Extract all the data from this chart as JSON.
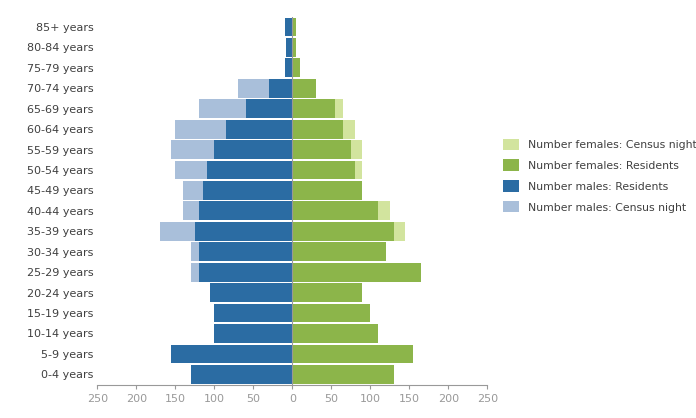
{
  "age_groups": [
    "0-4 years",
    "5-9 years",
    "10-14 years",
    "15-19 years",
    "20-24 years",
    "25-29 years",
    "30-34 years",
    "35-39 years",
    "40-44 years",
    "45-49 years",
    "50-54 years",
    "55-59 years",
    "60-64 years",
    "65-69 years",
    "70-74 years",
    "75-79 years",
    "80-84 years",
    "85+ years"
  ],
  "males_residents": [
    130,
    155,
    100,
    100,
    105,
    120,
    120,
    125,
    120,
    115,
    110,
    100,
    85,
    60,
    30,
    10,
    8,
    10
  ],
  "males_census_night": [
    0,
    0,
    0,
    0,
    105,
    130,
    130,
    170,
    140,
    140,
    150,
    155,
    150,
    120,
    70,
    0,
    0,
    0
  ],
  "females_residents": [
    130,
    155,
    110,
    100,
    90,
    165,
    120,
    130,
    110,
    90,
    80,
    75,
    65,
    55,
    30,
    10,
    5,
    5
  ],
  "females_census_night": [
    0,
    0,
    0,
    0,
    0,
    165,
    0,
    145,
    125,
    90,
    90,
    90,
    80,
    65,
    30,
    0,
    0,
    0
  ],
  "color_males_residents": "#2B6CA3",
  "color_males_census_night": "#A9BFDA",
  "color_females_residents": "#8CB54A",
  "color_females_census_night": "#D2E49E",
  "xlim": 250,
  "legend_labels": [
    "Number females: Census night",
    "Number females: Residents",
    "Number males: Residents",
    "Number males: Census night"
  ],
  "text_color": "#404040",
  "axis_color": "#999999"
}
